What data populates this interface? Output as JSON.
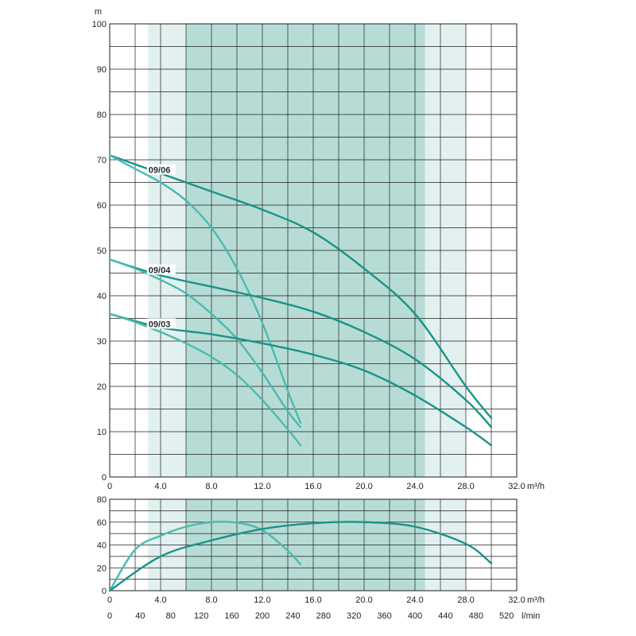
{
  "colors": {
    "band_light": "#e2f1ef",
    "band_dark": "#b7dcd6",
    "curve_main": "#1a9389",
    "curve_light": "#4bbab2",
    "grid": "#1e1e1e",
    "axis": "#1e1e1e"
  },
  "chart_data": [
    {
      "type": "line",
      "ylabel": "m",
      "xlabel": "m³/h",
      "xlim": [
        0,
        32
      ],
      "ylim": [
        0,
        100
      ],
      "x_tick_labels": [
        "0",
        "4.0",
        "8.0",
        "12.0",
        "16.0",
        "20.0",
        "24.0",
        "28.0",
        "32.0"
      ],
      "y_tick_labels": [
        "0",
        "10",
        "20",
        "30",
        "40",
        "50",
        "60",
        "70",
        "80",
        "90",
        "100"
      ],
      "grid": true,
      "bands": [
        {
          "x_range": [
            3,
            6
          ],
          "shade": "light"
        },
        {
          "x_range": [
            6,
            24.8
          ],
          "shade": "dark"
        },
        {
          "x_range": [
            24.8,
            28
          ],
          "shade": "light"
        }
      ],
      "curve_labels": [
        {
          "text": "09/06",
          "x": 2.8,
          "y": 67.8
        },
        {
          "text": "09/04",
          "x": 2.8,
          "y": 45.7
        },
        {
          "text": "09/03",
          "x": 2.8,
          "y": 33.8
        }
      ],
      "series": [
        {
          "label_ref": "09/06",
          "style": "main",
          "x": [
            0,
            4,
            8,
            12,
            16,
            20,
            24,
            28,
            30
          ],
          "y": [
            71,
            67,
            63,
            59,
            54,
            46,
            36,
            20,
            13
          ]
        },
        {
          "label_ref": "09/06",
          "style": "light",
          "x": [
            0,
            2,
            4,
            6,
            8,
            10,
            12,
            14,
            15
          ],
          "y": [
            71,
            68,
            65,
            61,
            55,
            46,
            34,
            19,
            12
          ]
        },
        {
          "label_ref": "09/04",
          "style": "main",
          "x": [
            0,
            4,
            8,
            12,
            16,
            20,
            24,
            28,
            30
          ],
          "y": [
            48,
            44.5,
            42,
            39.5,
            36.5,
            32,
            26,
            17,
            11
          ]
        },
        {
          "label_ref": "09/04",
          "style": "light",
          "x": [
            0,
            2,
            4,
            6,
            8,
            10,
            12,
            14,
            15
          ],
          "y": [
            48,
            46,
            43.5,
            40.5,
            36,
            30.5,
            23,
            14.5,
            11
          ]
        },
        {
          "label_ref": "09/03",
          "style": "main",
          "x": [
            0,
            4,
            8,
            12,
            16,
            20,
            24,
            28,
            30
          ],
          "y": [
            36,
            33,
            31.5,
            29.5,
            27,
            23.5,
            18,
            11,
            7
          ]
        },
        {
          "label_ref": "09/03",
          "style": "light",
          "x": [
            0,
            2,
            4,
            6,
            8,
            10,
            12,
            14,
            15
          ],
          "y": [
            36,
            34.2,
            32,
            29.5,
            26.5,
            22.5,
            17,
            10.5,
            7
          ]
        }
      ]
    },
    {
      "type": "line",
      "xlabel": "m³/h",
      "xlabel2": "l/min",
      "xlim": [
        0,
        32
      ],
      "ylim": [
        0,
        80
      ],
      "x_tick_labels": [
        "0",
        "4.0",
        "8.0",
        "12.0",
        "16.0",
        "20.0",
        "24.0",
        "28.0",
        "32.0"
      ],
      "x2_tick_labels": [
        "0",
        "40",
        "80",
        "120",
        "160",
        "200",
        "240",
        "280",
        "320",
        "360",
        "400",
        "440",
        "480",
        "520"
      ],
      "y_tick_labels": [
        "0",
        "20",
        "40",
        "60",
        "80"
      ],
      "grid": true,
      "series": [
        {
          "style": "light",
          "x": [
            0,
            2,
            4,
            6,
            8,
            10,
            12,
            14,
            15
          ],
          "y": [
            0,
            36,
            48,
            56,
            60,
            59.5,
            53,
            35,
            23
          ]
        },
        {
          "style": "main",
          "x": [
            0,
            4,
            8,
            12,
            16,
            20,
            24,
            28,
            30
          ],
          "y": [
            0,
            30,
            44,
            54,
            59,
            60,
            56,
            41,
            24
          ]
        }
      ]
    }
  ]
}
